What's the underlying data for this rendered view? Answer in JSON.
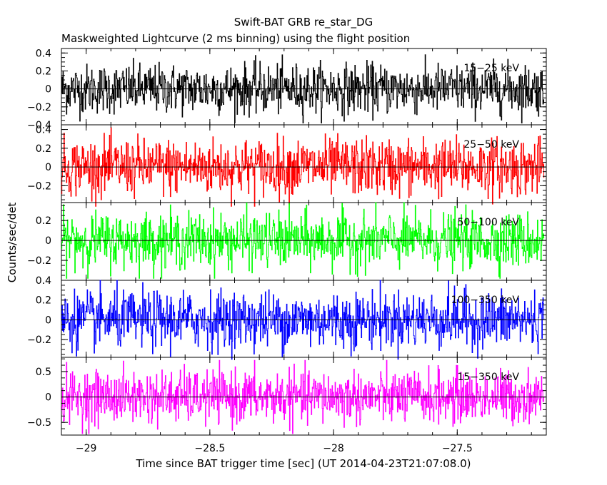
{
  "chart_data": {
    "type": "line",
    "title": "Swift-BAT GRB re_star_DG",
    "subtitle": "Maskweighted Lightcurve (2 ms binning) using the flight position",
    "xlabel": "Time since BAT trigger time [sec] (UT 2014-04-23T21:07:08.0)",
    "ylabel": "Counts/sec/det",
    "xlim": [
      -29.1,
      -27.14
    ],
    "x_range_data": [
      -29.1,
      -27.15
    ],
    "bin_width_sec": 0.002,
    "x_ticks": [
      {
        "value": -29,
        "label": "−29"
      },
      {
        "value": -28.5,
        "label": "−28.5"
      },
      {
        "value": -28,
        "label": "−28"
      },
      {
        "value": -27.5,
        "label": "−27.5"
      }
    ],
    "panels": [
      {
        "band": "15−25 keV",
        "color": "#000000",
        "ylim": [
          -0.4,
          0.45
        ],
        "amplitude": 0.38,
        "y_ticks": [
          {
            "value": 0.4,
            "label": "0.4"
          },
          {
            "value": 0.2,
            "label": "0.2"
          },
          {
            "value": 0,
            "label": "0"
          },
          {
            "value": -0.2,
            "label": "−0.2"
          },
          {
            "value": -0.4,
            "label": "−0.4"
          }
        ]
      },
      {
        "band": "25−50 keV",
        "color": "#ff0000",
        "ylim": [
          -0.38,
          0.45
        ],
        "amplitude": 0.42,
        "y_ticks": [
          {
            "value": 0.4,
            "label": "0.4"
          },
          {
            "value": 0.2,
            "label": "0.2"
          },
          {
            "value": 0,
            "label": "0"
          },
          {
            "value": -0.2,
            "label": "−0.2"
          }
        ]
      },
      {
        "band": "50−100 keV",
        "color": "#00ff00",
        "ylim": [
          -0.4,
          0.38
        ],
        "amplitude": 0.38,
        "y_ticks": [
          {
            "value": 0.2,
            "label": "0.2"
          },
          {
            "value": 0,
            "label": "0"
          },
          {
            "value": -0.2,
            "label": "−0.2"
          }
        ]
      },
      {
        "band": "100−350 keV",
        "color": "#0000ff",
        "ylim": [
          -0.38,
          0.4
        ],
        "amplitude": 0.4,
        "y_ticks": [
          {
            "value": 0.4,
            "label": "0.4"
          },
          {
            "value": 0.2,
            "label": "0.2"
          },
          {
            "value": 0,
            "label": "0"
          },
          {
            "value": -0.2,
            "label": "−0.2"
          }
        ]
      },
      {
        "band": "15−350 keV",
        "color": "#ff00ff",
        "ylim": [
          -0.75,
          0.78
        ],
        "amplitude": 0.72,
        "y_ticks": [
          {
            "value": 0.5,
            "label": "0.5"
          },
          {
            "value": 0,
            "label": "0"
          },
          {
            "value": -0.5,
            "label": "−0.5"
          }
        ]
      }
    ],
    "zero_line": true,
    "grid": false,
    "legend": "band label inside top-right of each panel"
  }
}
